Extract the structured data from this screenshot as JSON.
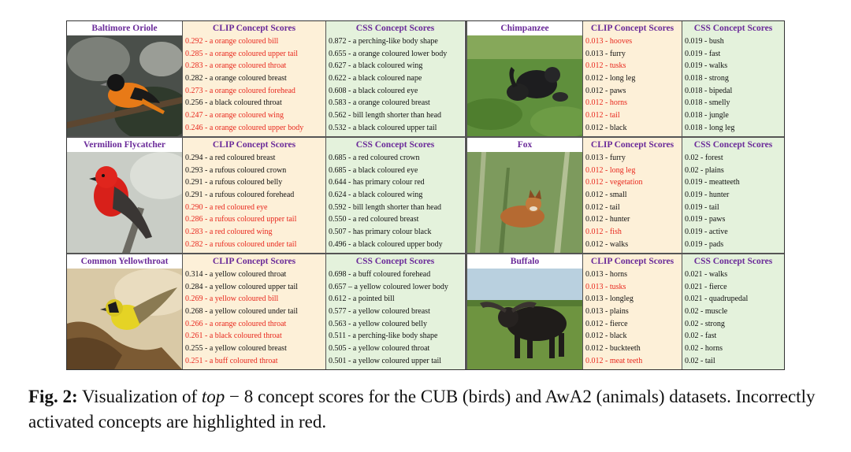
{
  "panels": [
    {
      "species": "Baltimore Oriole",
      "clip_header": "CLIP Concept Scores",
      "css_header": "CSS Concept Scores",
      "clip": [
        {
          "text": "0.292 - a orange coloured bill",
          "bad": true
        },
        {
          "text": "0.285 - a orange coloured upper tail",
          "bad": true
        },
        {
          "text": "0.283 - a orange coloured throat",
          "bad": true
        },
        {
          "text": "0.282 - a orange coloured breast",
          "bad": false
        },
        {
          "text": "0.273 - a orange coloured forehead",
          "bad": true
        },
        {
          "text": "0.256 - a black coloured throat",
          "bad": false
        },
        {
          "text": "0.247 - a orange coloured wing",
          "bad": true
        },
        {
          "text": "0.246 - a orange coloured upper body",
          "bad": true
        }
      ],
      "css": [
        {
          "text": "0.872 - a perching-like body shape",
          "bad": false
        },
        {
          "text": "0.655 - a orange coloured lower body",
          "bad": false
        },
        {
          "text": "0.627 - a black coloured wing",
          "bad": false
        },
        {
          "text": "0.622 - a black coloured nape",
          "bad": false
        },
        {
          "text": "0.608 - a black coloured eye",
          "bad": false
        },
        {
          "text": "0.583 - a orange coloured breast",
          "bad": false
        },
        {
          "text": "0.562 - bill length shorter than head",
          "bad": false
        },
        {
          "text": "0.532 - a black coloured upper tail",
          "bad": false
        }
      ]
    },
    {
      "species": "Chimpanzee",
      "clip_header": "CLIP Concept Scores",
      "css_header": "CSS Concept Scores",
      "clip": [
        {
          "text": "0.013 - hooves",
          "bad": true
        },
        {
          "text": "0.013 - furry",
          "bad": false
        },
        {
          "text": "0.012 - tusks",
          "bad": true
        },
        {
          "text": "0.012 - long leg",
          "bad": false
        },
        {
          "text": "0.012 - paws",
          "bad": false
        },
        {
          "text": "0.012 - horns",
          "bad": true
        },
        {
          "text": "0.012 - tail",
          "bad": true
        },
        {
          "text": "0.012 - black",
          "bad": false
        }
      ],
      "css": [
        {
          "text": "0.019 - bush",
          "bad": false
        },
        {
          "text": "0.019 - fast",
          "bad": false
        },
        {
          "text": "0.019 - walks",
          "bad": false
        },
        {
          "text": "0.018 - strong",
          "bad": false
        },
        {
          "text": "0.018 - bipedal",
          "bad": false
        },
        {
          "text": "0.018 - smelly",
          "bad": false
        },
        {
          "text": "0.018 - jungle",
          "bad": false
        },
        {
          "text": "0.018 - long leg",
          "bad": false
        }
      ]
    },
    {
      "species": "Vermilion Flycatcher",
      "clip_header": "CLIP Concept Scores",
      "css_header": "CSS Concept Scores",
      "clip": [
        {
          "text": "0.294 - a red coloured breast",
          "bad": false
        },
        {
          "text": "0.293 - a rufous coloured crown",
          "bad": false
        },
        {
          "text": "0.291 - a rufous coloured belly",
          "bad": false
        },
        {
          "text": "0.291 - a rufous coloured forehead",
          "bad": false
        },
        {
          "text": "0.290 - a red coloured eye",
          "bad": true
        },
        {
          "text": "0.286 - a rufous coloured upper tail",
          "bad": true
        },
        {
          "text": "0.283 - a red coloured wing",
          "bad": true
        },
        {
          "text": "0.282 - a rufous coloured under tail",
          "bad": true
        }
      ],
      "css": [
        {
          "text": "0.685 - a red coloured crown",
          "bad": false
        },
        {
          "text": "0.685 - a black coloured eye",
          "bad": false
        },
        {
          "text": "0.644 - has primary colour red",
          "bad": false
        },
        {
          "text": "0.624 - a black coloured wing",
          "bad": false
        },
        {
          "text": "0.592 - bill length shorter than head",
          "bad": false
        },
        {
          "text": "0.550 - a red coloured breast",
          "bad": false
        },
        {
          "text": "0.507 - has primary colour black",
          "bad": false
        },
        {
          "text": "0.496 - a black coloured upper body",
          "bad": false
        }
      ]
    },
    {
      "species": "Fox",
      "clip_header": "CLIP Concept Scores",
      "css_header": "CSS Concept Scores",
      "clip": [
        {
          "text": "0.013 - furry",
          "bad": false
        },
        {
          "text": "0.012 - long leg",
          "bad": true
        },
        {
          "text": "0.012 - vegetation",
          "bad": true
        },
        {
          "text": "0.012 - small",
          "bad": false
        },
        {
          "text": "0.012 - tail",
          "bad": false
        },
        {
          "text": "0.012 - hunter",
          "bad": false
        },
        {
          "text": "0.012 - fish",
          "bad": true
        },
        {
          "text": "0.012 - walks",
          "bad": false
        }
      ],
      "css": [
        {
          "text": "0.02 - forest",
          "bad": false
        },
        {
          "text": "0.02 - plains",
          "bad": false
        },
        {
          "text": "0.019 - meatteeth",
          "bad": false
        },
        {
          "text": "0.019 - hunter",
          "bad": false
        },
        {
          "text": "0.019 - tail",
          "bad": false
        },
        {
          "text": "0.019 - paws",
          "bad": false
        },
        {
          "text": "0.019 - active",
          "bad": false
        },
        {
          "text": "0.019 - pads",
          "bad": false
        }
      ]
    },
    {
      "species": "Common Yellowthroat",
      "clip_header": "CLIP Concept Scores",
      "css_header": "CSS Concept Scores",
      "clip": [
        {
          "text": "0.314 - a yellow coloured throat",
          "bad": false
        },
        {
          "text": "0.284 - a yellow coloured upper tail",
          "bad": false
        },
        {
          "text": "0.269 - a yellow coloured bill",
          "bad": true
        },
        {
          "text": "0.268 - a yellow coloured under tail",
          "bad": false
        },
        {
          "text": "0.266 - a orange coloured throat",
          "bad": true
        },
        {
          "text": "0.261 - a black coloured throat",
          "bad": true
        },
        {
          "text": "0.255 - a yellow coloured breast",
          "bad": false
        },
        {
          "text": "0.251 - a buff coloured throat",
          "bad": true
        }
      ],
      "css": [
        {
          "text": "0.698 - a buff coloured forehead",
          "bad": false
        },
        {
          "text": "0.657 – a yellow coloured lower body",
          "bad": false
        },
        {
          "text": "0.612 - a pointed bill",
          "bad": false
        },
        {
          "text": "0.577 - a yellow coloured breast",
          "bad": false
        },
        {
          "text": "0.563 - a yellow coloured belly",
          "bad": false
        },
        {
          "text": "0.511 - a perching-like body shape",
          "bad": false
        },
        {
          "text": "0.505 - a yellow coloured throat",
          "bad": false
        },
        {
          "text": "0.501 - a yellow coloured upper tail",
          "bad": false
        }
      ]
    },
    {
      "species": "Buffalo",
      "clip_header": "CLIP Concept Scores",
      "css_header": "CSS Concept Scores",
      "clip": [
        {
          "text": "0.013 - horns",
          "bad": false
        },
        {
          "text": "0.013 - tusks",
          "bad": true
        },
        {
          "text": "0.013 - longleg",
          "bad": false
        },
        {
          "text": "0.013 - plains",
          "bad": false
        },
        {
          "text": "0.012 - fierce",
          "bad": false
        },
        {
          "text": "0.012 - black",
          "bad": false
        },
        {
          "text": "0.012 - buckteeth",
          "bad": false
        },
        {
          "text": "0.012 - meat teeth",
          "bad": true
        }
      ],
      "css": [
        {
          "text": "0.021 - walks",
          "bad": false
        },
        {
          "text": "0.021 - fierce",
          "bad": false
        },
        {
          "text": "0.021 - quadrupedal",
          "bad": false
        },
        {
          "text": "0.02 - muscle",
          "bad": false
        },
        {
          "text": "0.02 - strong",
          "bad": false
        },
        {
          "text": "0.02 - fast",
          "bad": false
        },
        {
          "text": "0.02 - horns",
          "bad": false
        },
        {
          "text": "0.02 - tail",
          "bad": false
        }
      ]
    }
  ],
  "colors": {
    "incorrect": "#e8281e",
    "header": "#6a2a99",
    "clip_bg": "#fdf0d8",
    "css_bg": "#e4f2dc"
  },
  "caption": {
    "label": "Fig. 2:",
    "text_before": " Visualization of ",
    "math": "top",
    "math_rest": " − 8",
    "text_after": " concept scores for the CUB (birds) and AwA2 (animals) datasets. Incorrectly activated concepts are highlighted in red."
  }
}
